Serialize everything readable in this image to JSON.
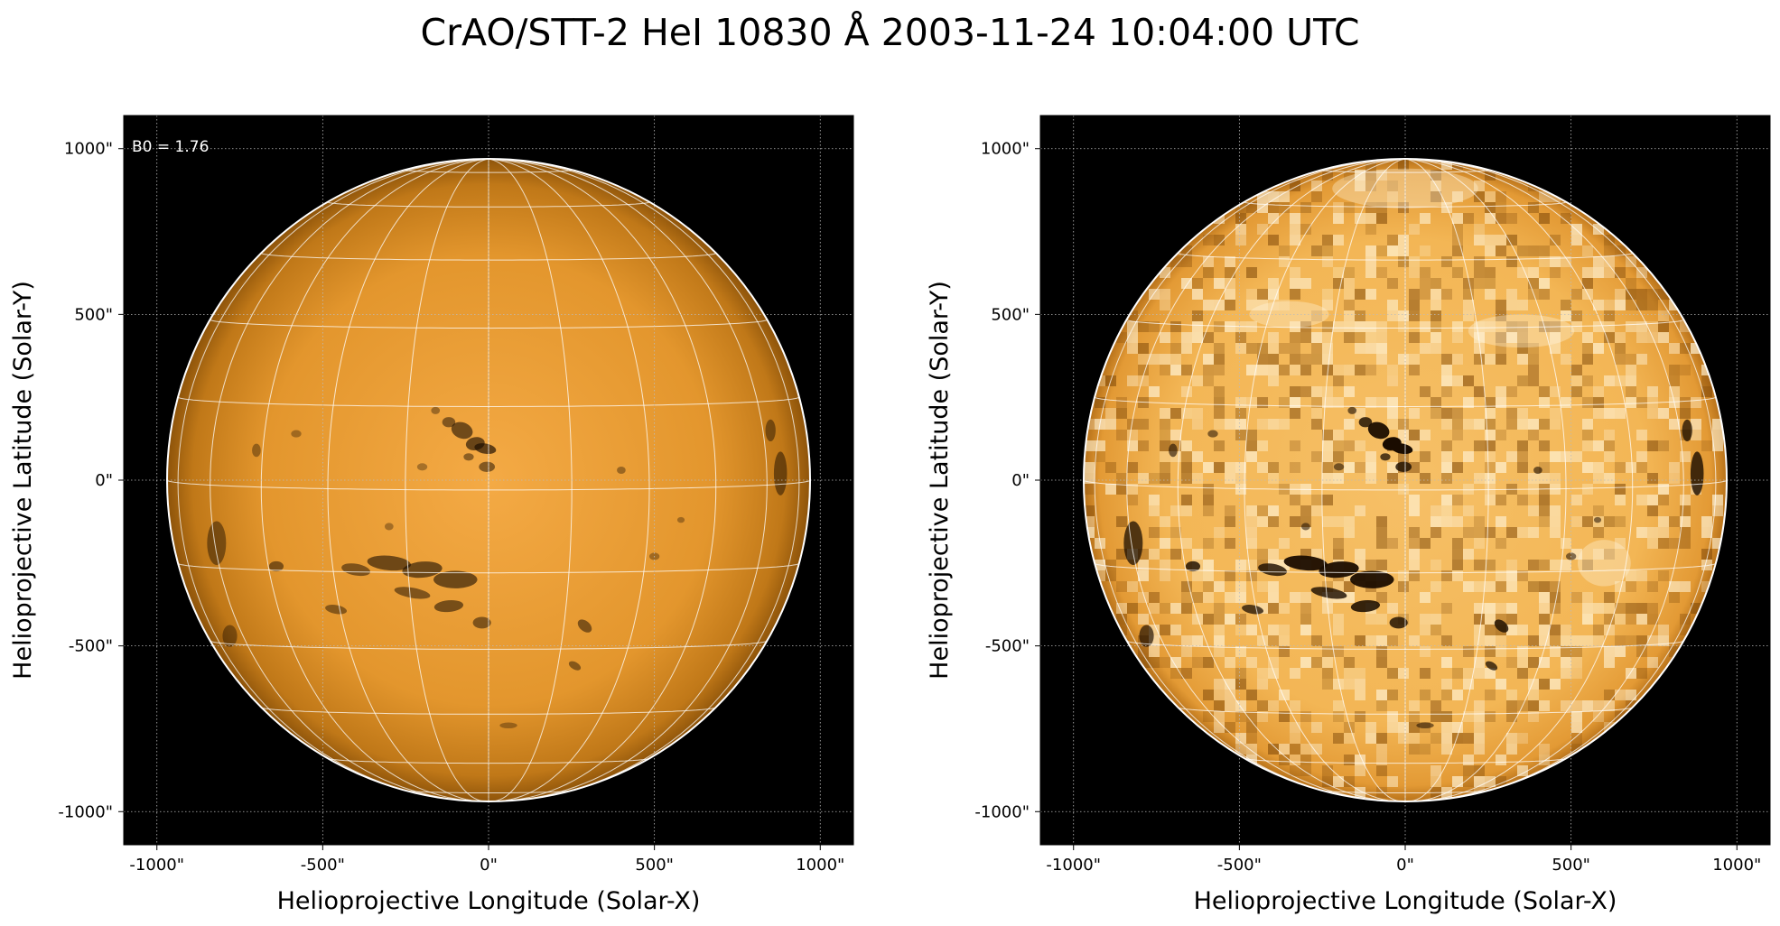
{
  "title": "CrAO/STT-2 HeI 10830 Å 2003-11-24 10:04:00 UTC",
  "panels": [
    {
      "id": "left",
      "annotation": "B0 = 1.76",
      "xlabel": "Helioprojective Longitude (Solar-X)",
      "ylabel": "Helioprojective Latitude (Solar-Y)",
      "xticks": [
        "-1000\"",
        "-500\"",
        "0\"",
        "500\"",
        "1000\""
      ],
      "yticks": [
        "1000\"",
        "500\"",
        "0\"",
        "-500\"",
        "-1000\""
      ],
      "style": "normal"
    },
    {
      "id": "right",
      "annotation": "",
      "xlabel": "Helioprojective Longitude (Solar-X)",
      "ylabel": "Helioprojective Latitude (Solar-Y)",
      "xticks": [
        "-1000\"",
        "-500\"",
        "0\"",
        "500\"",
        "1000\""
      ],
      "yticks": [
        "1000\"",
        "500\"",
        "0\"",
        "-500\"",
        "-1000\""
      ],
      "style": "enhanced"
    }
  ],
  "colors": {
    "background": "#000000",
    "disk_center": "#f2a640",
    "disk_limb": "#a8660c",
    "enhanced_center": "#f7c572",
    "enhanced_bright": "#fff1d0",
    "grid": "#ffffff",
    "limb": "#ffffff"
  },
  "solar_radius_arcsec": 975,
  "axis_range_arcsec": [
    -1100,
    1100
  ],
  "tick_values_arcsec": [
    -1000,
    -500,
    0,
    500,
    1000
  ]
}
